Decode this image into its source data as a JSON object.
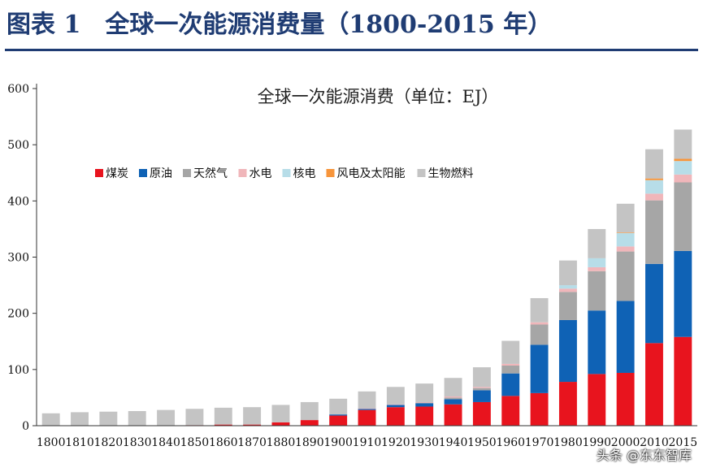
{
  "figure_title": "图表 1　全球一次能源消费量（1800-2015 年）",
  "watermark": "头条 @东东智库",
  "chart_data": {
    "type": "bar",
    "stacked": true,
    "title": "全球一次能源消费（单位：EJ）",
    "xlabel": "",
    "ylabel": "",
    "ylim": [
      0,
      600
    ],
    "yticks": [
      0,
      100,
      200,
      300,
      400,
      500,
      600
    ],
    "grid": false,
    "legend_position": "top-left",
    "categories": [
      "1800",
      "1810",
      "1820",
      "1830",
      "1840",
      "1850",
      "1860",
      "1870",
      "1880",
      "1890",
      "1900",
      "1910",
      "1920",
      "1930",
      "1940",
      "1950",
      "1960",
      "1970",
      "1980",
      "1990",
      "2000",
      "2010",
      "2015"
    ],
    "xtick_labels": [
      "1800",
      "1810",
      "1820",
      "1830",
      "1840",
      "1850",
      "1860",
      "1870",
      "1880",
      "1890",
      "1900",
      "1910",
      "1920",
      "1930",
      "1940",
      "1950",
      "1960",
      "1970",
      "1980",
      "1990",
      "2000",
      "2010",
      "2015"
    ],
    "series": [
      {
        "name": "煤炭",
        "color": "#e8141e",
        "values": [
          0,
          0,
          0,
          0,
          0,
          1,
          2,
          2,
          6,
          10,
          18,
          28,
          33,
          34,
          38,
          42,
          53,
          58,
          78,
          92,
          94,
          147,
          158
        ]
      },
      {
        "name": "原油",
        "color": "#0f62b5",
        "values": [
          0,
          0,
          0,
          0,
          0,
          0,
          0,
          0,
          0,
          0,
          2,
          2,
          4,
          6,
          9,
          21,
          40,
          86,
          110,
          113,
          128,
          141,
          153
        ]
      },
      {
        "name": "天然气",
        "color": "#a6a6a6",
        "values": [
          0,
          0,
          0,
          0,
          0,
          0,
          0,
          0,
          0,
          0,
          0,
          0,
          0,
          1,
          3,
          4,
          14,
          36,
          50,
          70,
          88,
          113,
          122
        ]
      },
      {
        "name": "水电",
        "color": "#f0b6ba",
        "values": [
          0,
          0,
          0,
          0,
          0,
          0,
          0,
          0,
          0,
          0,
          0,
          1,
          1,
          1,
          2,
          2,
          3,
          4,
          6,
          7,
          9,
          12,
          14
        ]
      },
      {
        "name": "核电",
        "color": "#b7dde8",
        "values": [
          0,
          0,
          0,
          0,
          0,
          0,
          0,
          0,
          0,
          0,
          0,
          0,
          0,
          0,
          0,
          0,
          0,
          0,
          6,
          16,
          24,
          24,
          24
        ]
      },
      {
        "name": "风电及太阳能",
        "color": "#f7953b",
        "values": [
          0,
          0,
          0,
          0,
          0,
          0,
          0,
          0,
          0,
          0,
          0,
          0,
          0,
          0,
          0,
          0,
          0,
          0,
          0,
          0,
          1,
          3,
          4
        ]
      },
      {
        "name": "生物燃料",
        "color": "#c4c4c4",
        "values": [
          22,
          24,
          25,
          26,
          28,
          29,
          30,
          31,
          31,
          32,
          28,
          30,
          31,
          33,
          33,
          35,
          41,
          43,
          44,
          52,
          51,
          52,
          52
        ]
      }
    ]
  }
}
